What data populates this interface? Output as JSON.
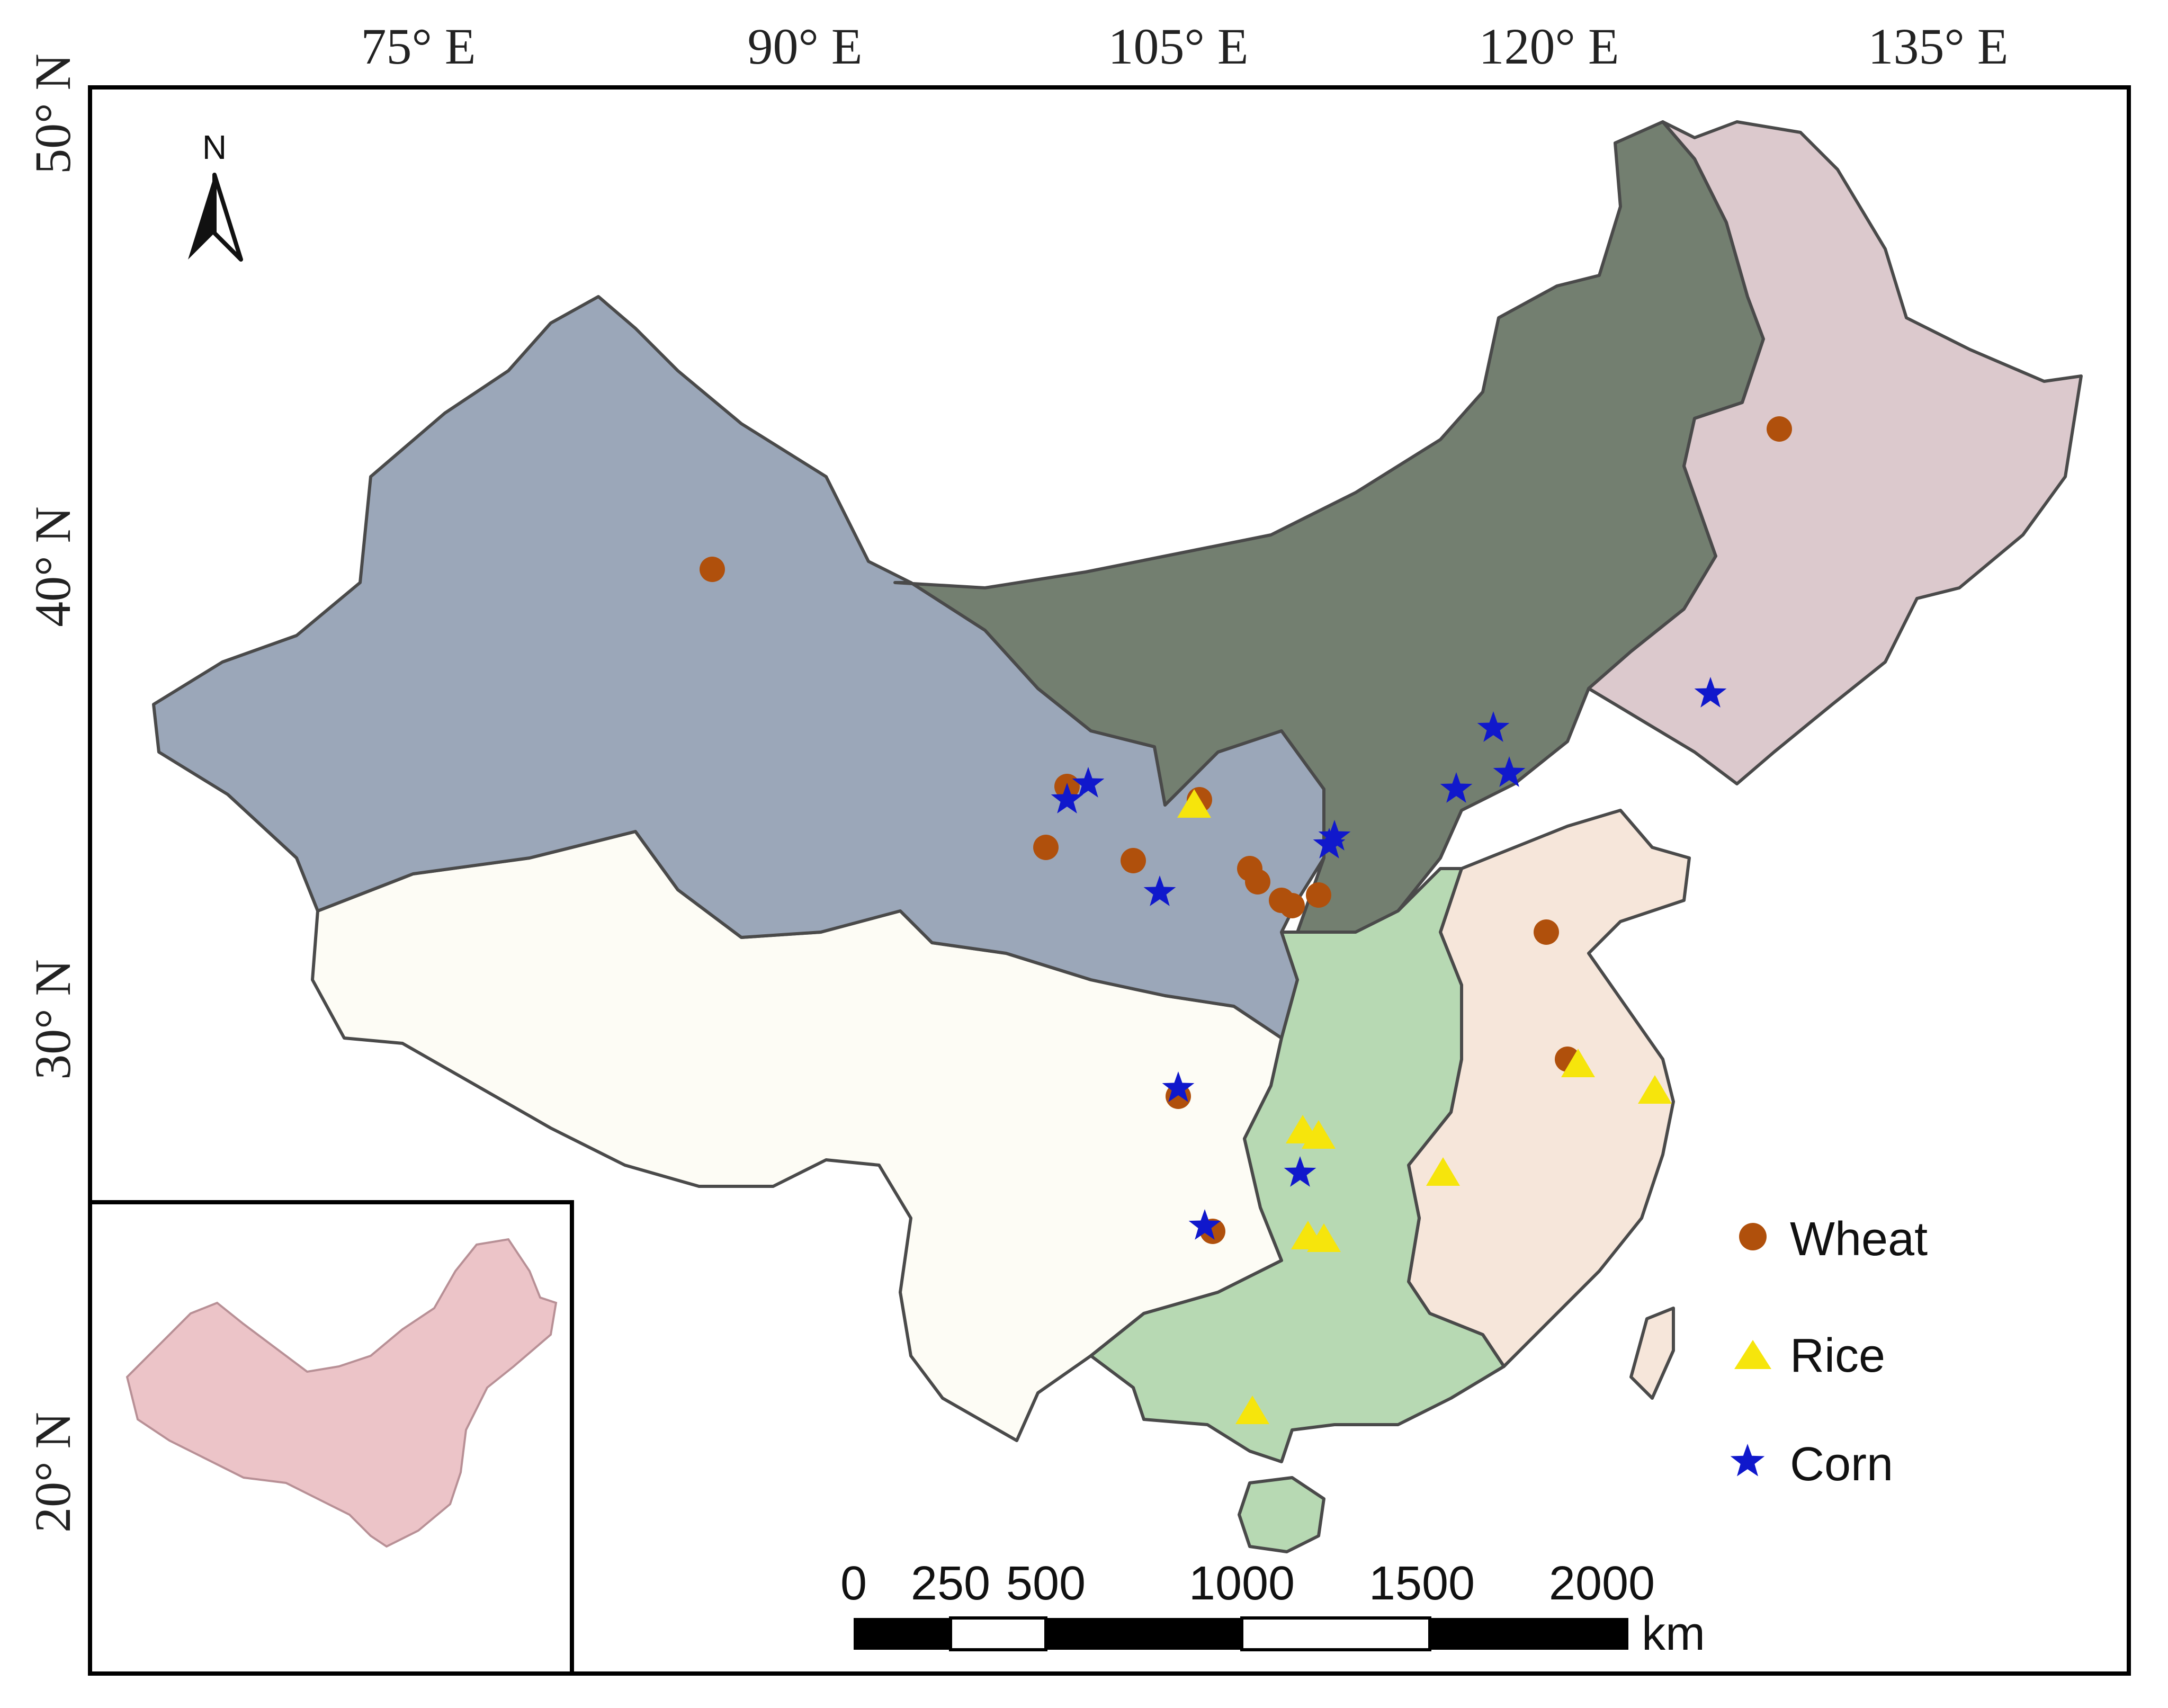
{
  "map": {
    "lon_labels": [
      "75° E",
      "90° E",
      "105° E",
      "120° E",
      "135° E"
    ],
    "lat_labels": [
      "50° N",
      "40° N",
      "30° N",
      "20° N"
    ],
    "north_label": "N",
    "legend": {
      "wheat": "Wheat",
      "rice": "Rice",
      "corn": "Corn"
    },
    "scale": {
      "ticks": [
        "0",
        "250",
        "500",
        "1000",
        "1500",
        "2000"
      ],
      "unit": "km"
    },
    "colors": {
      "northwest": "#9ba7b9",
      "north": "#737f70",
      "northeast": "#dcc9cd",
      "southwest": "#fdfcf5",
      "central_south": "#b7d9b3",
      "east": "#f6e6da",
      "inset": "#ecc4c8",
      "wheat": "#b0500c",
      "rice": "#f6e50c",
      "corn": "#1018cc"
    }
  }
}
